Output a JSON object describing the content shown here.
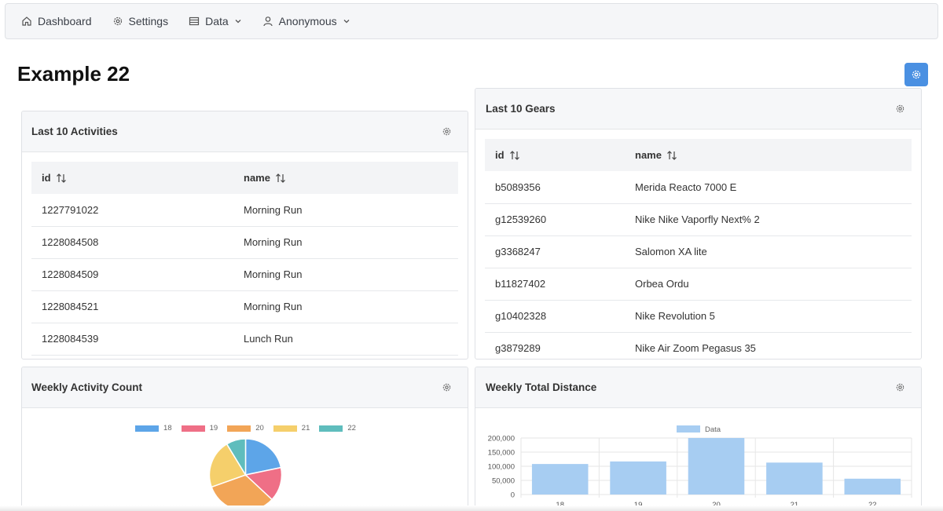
{
  "nav": {
    "dashboard": "Dashboard",
    "settings": "Settings",
    "data": "Data",
    "user": "Anonymous"
  },
  "page": {
    "title": "Example 22"
  },
  "colors": {
    "accent": "#4a90e2"
  },
  "activities": {
    "title": "Last 10 Activities",
    "columns": [
      "id",
      "name"
    ],
    "rows": [
      [
        "1227791022",
        "Morning Run"
      ],
      [
        "1228084508",
        "Morning Run"
      ],
      [
        "1228084509",
        "Morning Run"
      ],
      [
        "1228084521",
        "Morning Run"
      ],
      [
        "1228084539",
        "Lunch Run"
      ]
    ]
  },
  "gears": {
    "title": "Last 10 Gears",
    "columns": [
      "id",
      "name"
    ],
    "rows": [
      [
        "b5089356",
        "Merida Reacto 7000 E"
      ],
      [
        "g12539260",
        "Nike Nike Vaporfly Next% 2"
      ],
      [
        "g3368247",
        "Salomon XA lite"
      ],
      [
        "b11827402",
        "Orbea Ordu"
      ],
      [
        "g10402328",
        "Nike Revolution 5"
      ],
      [
        "g3879289",
        "Nike Air Zoom Pegasus 35"
      ]
    ]
  },
  "weekly_count": {
    "title": "Weekly Activity Count"
  },
  "weekly_distance": {
    "title": "Weekly Total Distance"
  },
  "chart_data": [
    {
      "type": "pie",
      "categories": [
        "18",
        "19",
        "20",
        "21",
        "22"
      ],
      "values": [
        20,
        14,
        30,
        20,
        8
      ],
      "colors": [
        "#5da5e8",
        "#ef6f86",
        "#f2a557",
        "#f5cf6b",
        "#5fbdbd"
      ],
      "legend": "top"
    },
    {
      "type": "bar",
      "categories": [
        "18",
        "19",
        "20",
        "21",
        "22"
      ],
      "series": [
        {
          "name": "Data",
          "values": [
            108000,
            117000,
            200000,
            113000,
            56000
          ]
        }
      ],
      "yticks": [
        "200,000",
        "150,000",
        "100,000",
        "50,000",
        "0"
      ],
      "ylim": [
        0,
        200000
      ],
      "color": "#a7cdf2",
      "legend": "top",
      "grid": true
    }
  ]
}
